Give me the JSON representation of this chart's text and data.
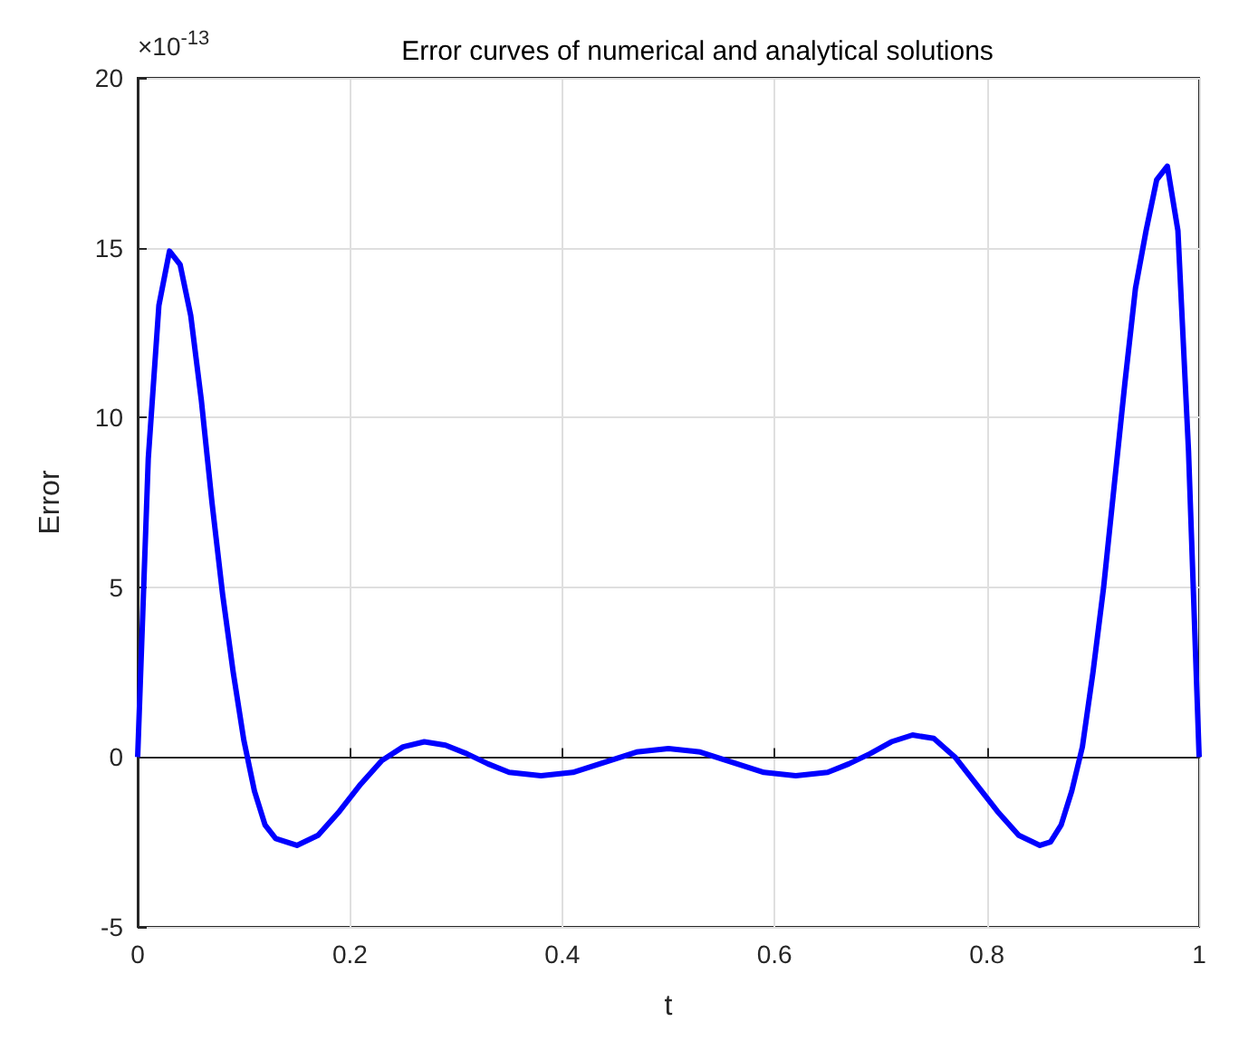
{
  "chart_data": {
    "type": "line",
    "title": "Error curves of numerical and analytical solutions",
    "xlabel": "t",
    "ylabel": "Error",
    "annotations": [
      "×10$^{-13}$"
    ],
    "x": [
      0,
      0.01,
      0.02,
      0.03,
      0.04,
      0.05,
      0.06,
      0.07,
      0.08,
      0.09,
      0.1,
      0.11,
      0.12,
      0.13,
      0.15,
      0.17,
      0.19,
      0.21,
      0.23,
      0.25,
      0.27,
      0.29,
      0.31,
      0.33,
      0.35,
      0.38,
      0.41,
      0.44,
      0.47,
      0.5,
      0.53,
      0.56,
      0.59,
      0.62,
      0.65,
      0.67,
      0.69,
      0.71,
      0.73,
      0.75,
      0.77,
      0.79,
      0.81,
      0.83,
      0.85,
      0.86,
      0.87,
      0.88,
      0.89,
      0.9,
      0.91,
      0.92,
      0.93,
      0.94,
      0.95,
      0.96,
      0.97,
      0.98,
      0.99,
      1
    ],
    "series": [
      {
        "color": "#0000ff",
        "values": [
          0,
          8.8,
          13.3,
          14.9,
          14.5,
          13,
          10.5,
          7.5,
          4.8,
          2.5,
          0.5,
          -1,
          -2,
          -2.4,
          -2.6,
          -2.3,
          -1.6,
          -0.8,
          -0.1,
          0.3,
          0.45,
          0.35,
          0.1,
          -0.2,
          -0.45,
          -0.55,
          -0.45,
          -0.15,
          0.15,
          0.25,
          0.15,
          -0.15,
          -0.45,
          -0.55,
          -0.45,
          -0.2,
          0.1,
          0.45,
          0.65,
          0.55,
          0,
          -0.8,
          -1.6,
          -2.3,
          -2.6,
          -2.5,
          -2,
          -1,
          0.3,
          2.5,
          5,
          8,
          11,
          13.8,
          15.5,
          17,
          17.4,
          15.5,
          9,
          0
        ]
      }
    ],
    "xlim": [
      0,
      1
    ],
    "xticks": [
      0,
      0.2,
      0.4,
      0.6,
      0.8,
      1
    ],
    "ylim": [
      -5,
      20
    ],
    "yticks": [
      -5,
      0,
      5,
      10,
      15,
      20
    ],
    "grid": true,
    "marker": "none",
    "line_style": "solid"
  }
}
